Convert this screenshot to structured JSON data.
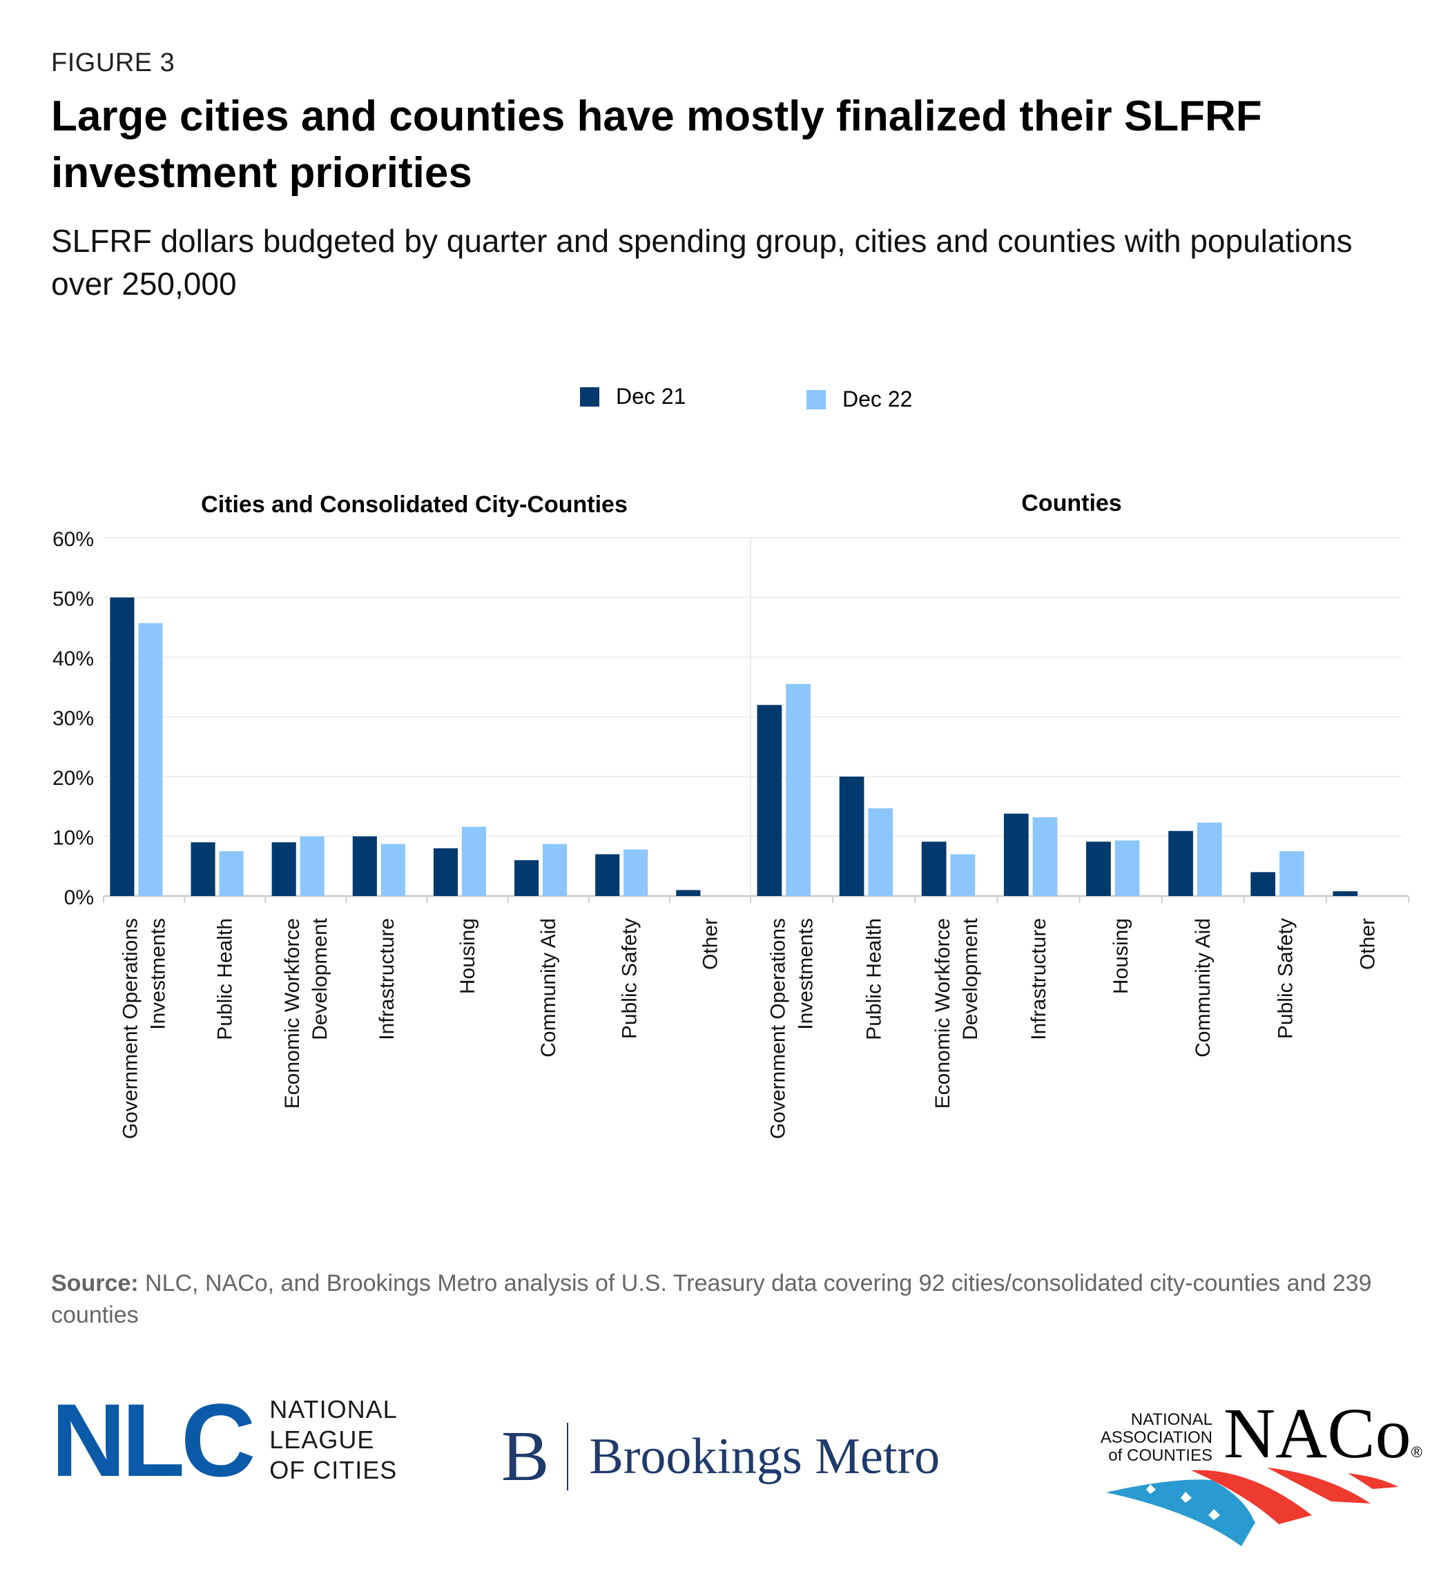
{
  "header": {
    "figure_label": "FIGURE 3",
    "title": "Large cities and counties have mostly finalized their SLFRF investment priorities",
    "subtitle": "SLFRF dollars budgeted by quarter and spending group, cities and counties with populations over 250,000"
  },
  "legend": [
    {
      "label": "Dec 21",
      "color": "#023a6e"
    },
    {
      "label": "Dec 22",
      "color": "#8dc6fc"
    }
  ],
  "chart_data": {
    "type": "bar",
    "ylim": [
      0,
      60
    ],
    "yticks": [
      0,
      10,
      20,
      30,
      40,
      50,
      60
    ],
    "ytick_labels": [
      "0%",
      "10%",
      "20%",
      "30%",
      "40%",
      "50%",
      "60%"
    ],
    "ylabel": "",
    "xlabel": "",
    "grid": true,
    "legend_position": "top-center",
    "panels": [
      {
        "title": "Cities and Consolidated City-Counties",
        "categories": [
          [
            "Government Operations",
            "Investments"
          ],
          [
            "Public Health"
          ],
          [
            "Economic Workforce",
            "Development"
          ],
          [
            "Infrastructure"
          ],
          [
            "Housing"
          ],
          [
            "Community Aid"
          ],
          [
            "Public Safety"
          ],
          [
            "Other"
          ]
        ],
        "series": [
          {
            "name": "Dec 21",
            "values": [
              50.0,
              9.0,
              9.0,
              10.0,
              8.0,
              6.0,
              7.0,
              1.0
            ]
          },
          {
            "name": "Dec 22",
            "values": [
              45.7,
              7.5,
              10.0,
              8.7,
              11.6,
              8.7,
              7.8,
              0.0
            ]
          }
        ]
      },
      {
        "title": "Counties",
        "categories": [
          [
            "Government Operations",
            "Investments"
          ],
          [
            "Public Health"
          ],
          [
            "Economic Workforce",
            "Development"
          ],
          [
            "Infrastructure"
          ],
          [
            "Housing"
          ],
          [
            "Community Aid"
          ],
          [
            "Public Safety"
          ],
          [
            "Other"
          ]
        ],
        "series": [
          {
            "name": "Dec 21",
            "values": [
              32.0,
              20.0,
              9.1,
              13.8,
              9.1,
              10.9,
              4.0,
              0.8
            ]
          },
          {
            "name": "Dec 22",
            "values": [
              35.5,
              14.7,
              7.0,
              13.2,
              9.3,
              12.3,
              7.5,
              0.0
            ]
          }
        ]
      }
    ]
  },
  "source": {
    "label": "Source:",
    "text": " NLC, NACo, and Brookings Metro analysis of U.S. Treasury data covering 92 cities/consolidated city-counties and 239 counties"
  },
  "logos": {
    "nlc": {
      "mark": "NLC",
      "line1": "NATIONAL",
      "line2": "LEAGUE",
      "line3": "OF CITIES"
    },
    "brookings": {
      "mark": "B",
      "name": "Brookings Metro"
    },
    "naco": {
      "line1": "NATIONAL",
      "line2": "ASSOCIATION",
      "line3": "of COUNTIES",
      "mark": "NACo",
      "registered": "®"
    }
  }
}
